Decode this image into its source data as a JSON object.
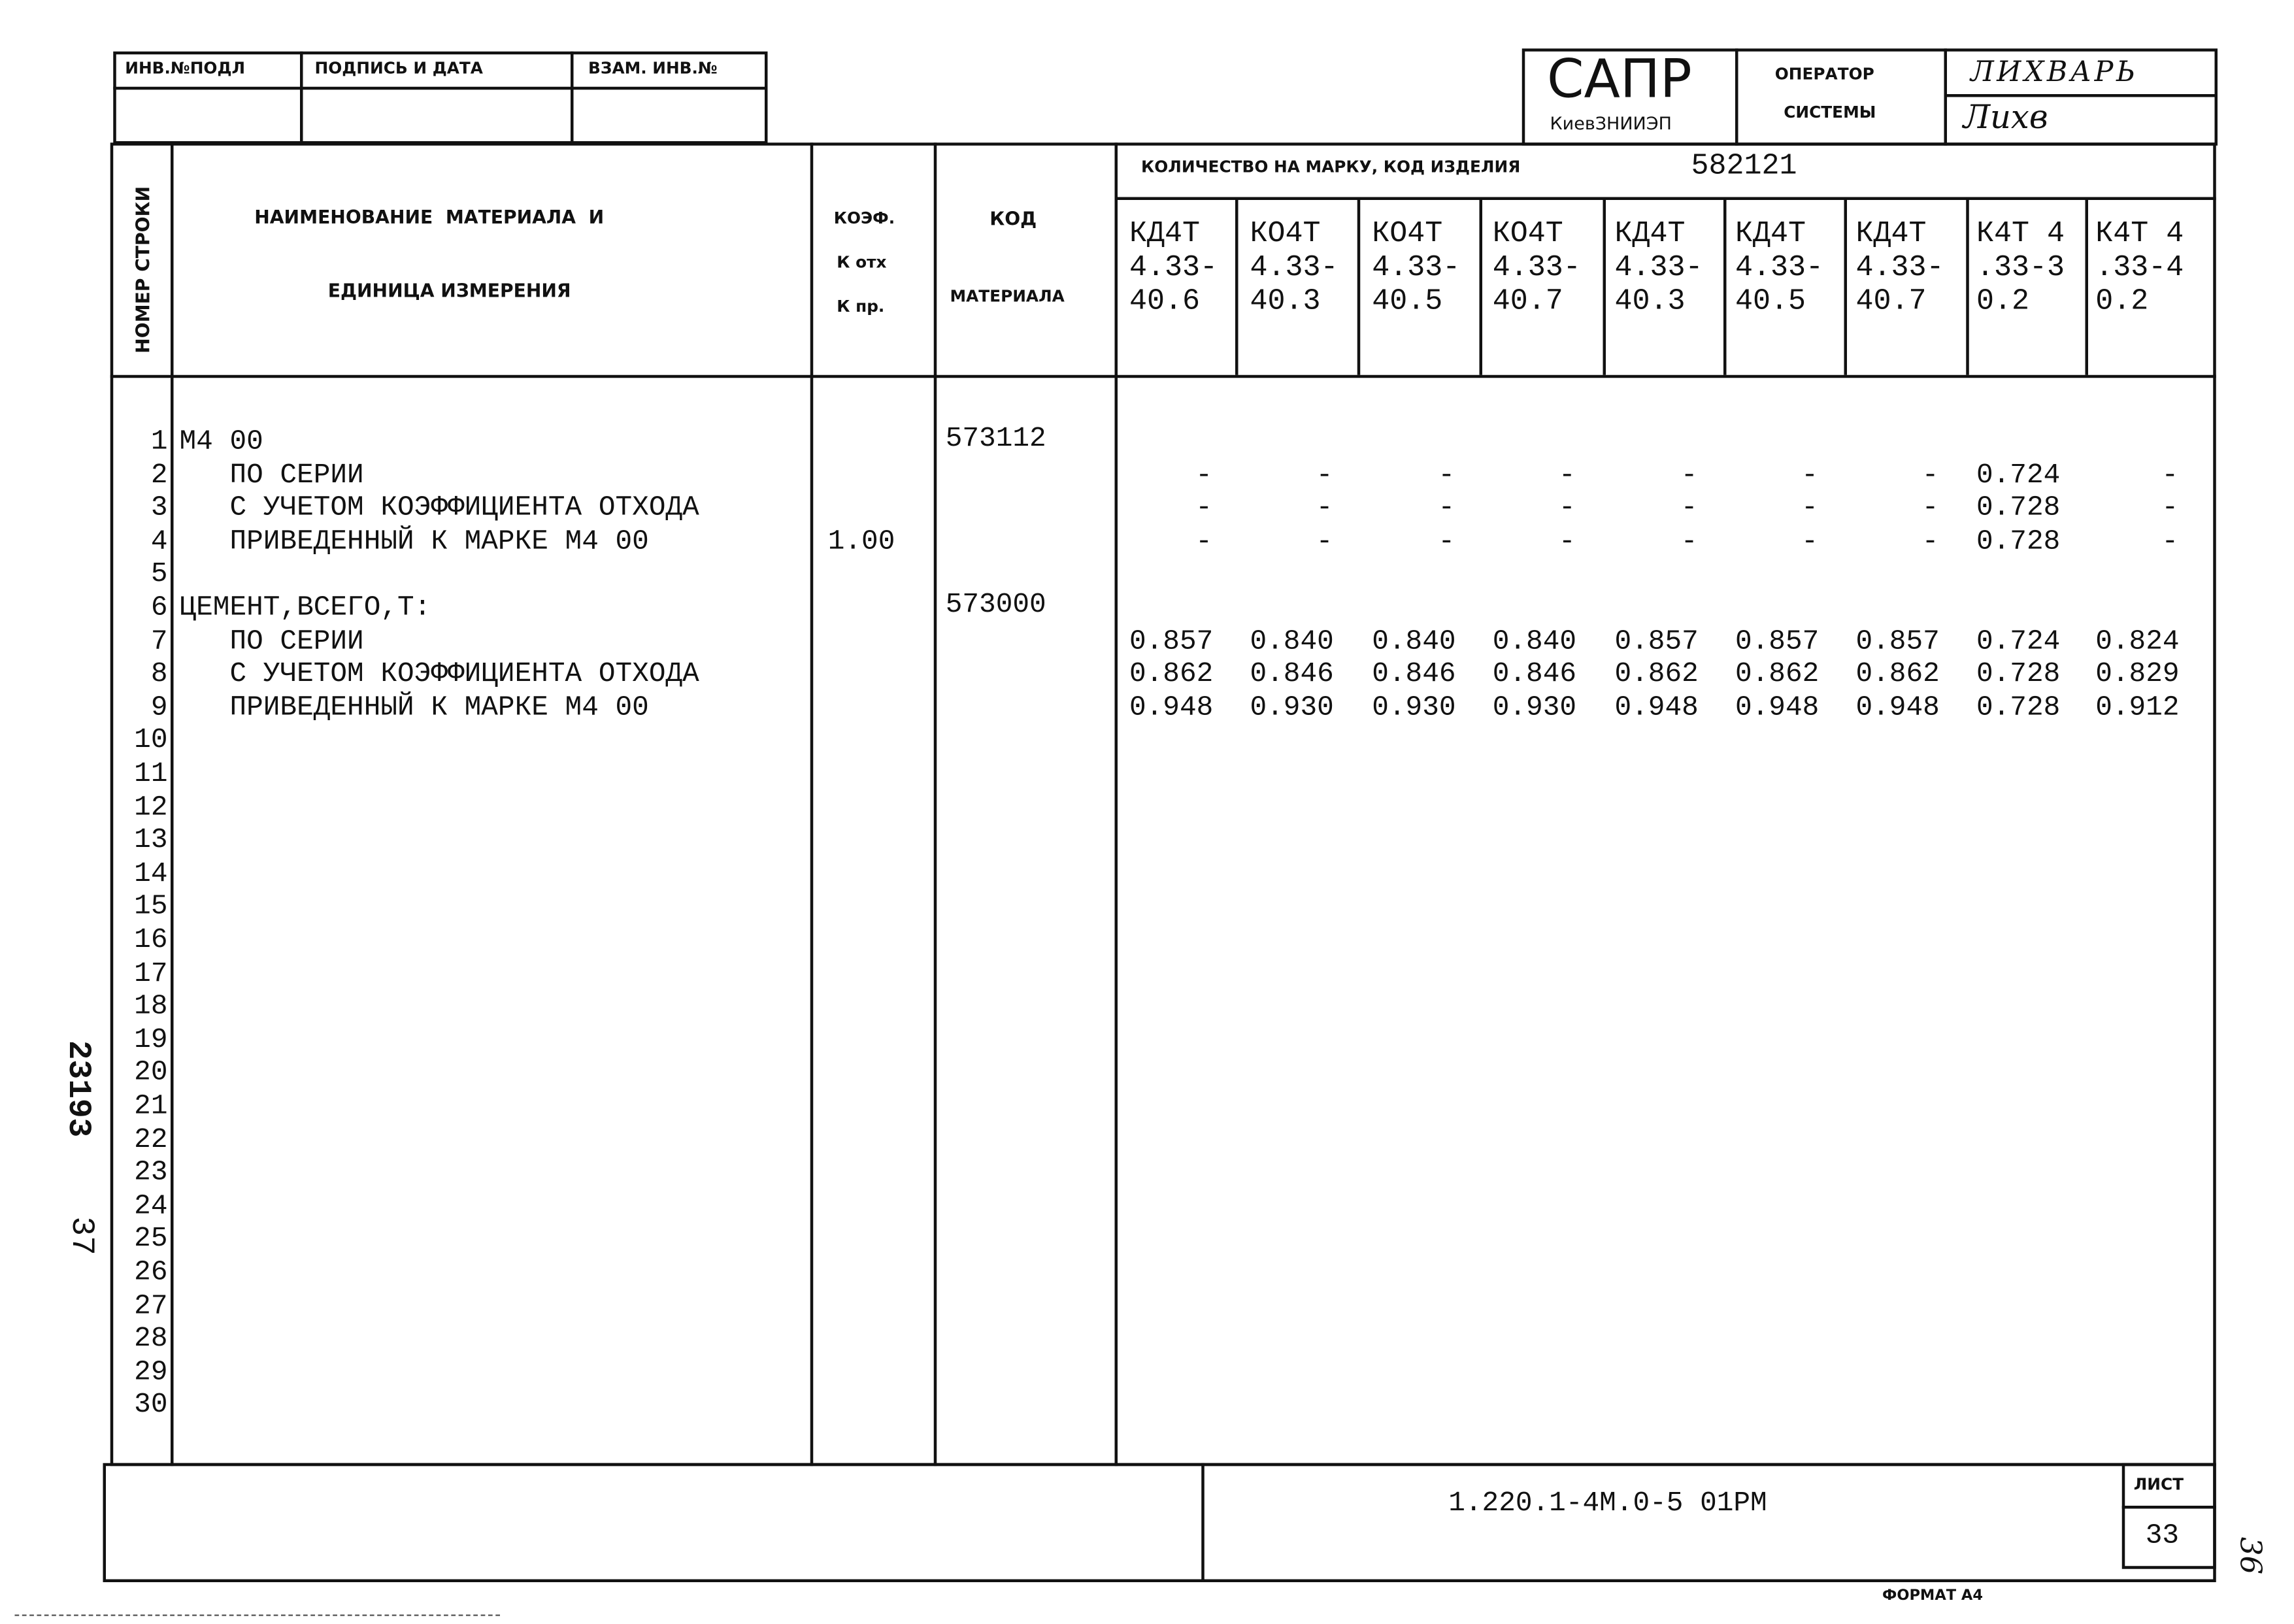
{
  "stamp_left": {
    "headers": [
      "ИНВ.№ПОДЛ",
      "ПОДПИСЬ И ДАТА",
      "ВЗАМ. ИНВ.№"
    ]
  },
  "stamp_right": {
    "logo": "САПР",
    "org": "КиевЗНИИЭП",
    "role_line1": "ОПЕРАТОР",
    "role_line2": "СИСТЕМЫ",
    "operator_name": "ЛИХВАРЬ",
    "signature": "Лихв"
  },
  "table": {
    "col_row_number": "НОМЕР СТРОКИ",
    "col_name_line1": "НАИМЕНОВАНИЕ  МАТЕРИАЛА  И",
    "col_name_line2": "ЕДИНИЦА ИЗМЕРЕНИЯ",
    "col_coef": [
      "КОЭФ.",
      "К отх",
      "К пр."
    ],
    "col_code": [
      "КОД",
      "МАТЕРИАЛА"
    ],
    "qty_label": "КОЛИЧЕСТВО НА МАРКУ, КОД ИЗДЕЛИЯ",
    "product_code": "582121",
    "marks": [
      [
        "КД4Т",
        "4.33-",
        "40.6"
      ],
      [
        "КО4Т",
        "4.33-",
        "40.3"
      ],
      [
        "КО4Т",
        "4.33-",
        "40.5"
      ],
      [
        "КО4Т",
        "4.33-",
        "40.7"
      ],
      [
        "КД4Т",
        "4.33-",
        "40.3"
      ],
      [
        "КД4Т",
        "4.33-",
        "40.5"
      ],
      [
        "КД4Т",
        "4.33-",
        "40.7"
      ],
      [
        "К4Т 4",
        ".33-3",
        "0.2"
      ],
      [
        "К4Т 4",
        ".33-4",
        "0.2"
      ]
    ],
    "row_numbers": [
      "1",
      "2",
      "3",
      "4",
      "5",
      "6",
      "7",
      "8",
      "9",
      "10",
      "11",
      "12",
      "13",
      "14",
      "15",
      "16",
      "17",
      "18",
      "19",
      "20",
      "21",
      "22",
      "23",
      "24",
      "25",
      "26",
      "27",
      "28",
      "29",
      "30"
    ],
    "rows": [
      {
        "line": 1,
        "name": "М4 00",
        "coef": "",
        "code": "573112",
        "values": []
      },
      {
        "line": 2,
        "name": "   ПО СЕРИИ",
        "coef": "",
        "code": "",
        "values": [
          "-",
          "-",
          "-",
          "-",
          "-",
          "-",
          "-",
          "0.724",
          "-"
        ]
      },
      {
        "line": 3,
        "name": "   С УЧЕТОМ КОЭФФИЦИЕНТА ОТХОДА",
        "coef": "",
        "code": "",
        "values": [
          "-",
          "-",
          "-",
          "-",
          "-",
          "-",
          "-",
          "0.728",
          "-"
        ]
      },
      {
        "line": 4,
        "name": "   ПРИВЕДЕННЫЙ К МАРКЕ М4 00",
        "coef": "1.00",
        "code": "",
        "values": [
          "-",
          "-",
          "-",
          "-",
          "-",
          "-",
          "-",
          "0.728",
          "-"
        ]
      },
      {
        "line": 6,
        "name": "ЦЕМЕНТ,ВСЕГО,Т:",
        "coef": "",
        "code": "573000",
        "values": []
      },
      {
        "line": 7,
        "name": "   ПО СЕРИИ",
        "coef": "",
        "code": "",
        "values": [
          "0.857",
          "0.840",
          "0.840",
          "0.840",
          "0.857",
          "0.857",
          "0.857",
          "0.724",
          "0.824"
        ]
      },
      {
        "line": 8,
        "name": "   С УЧЕТОМ КОЭФФИЦИЕНТА ОТХОДА",
        "coef": "",
        "code": "",
        "values": [
          "0.862",
          "0.846",
          "0.846",
          "0.846",
          "0.862",
          "0.862",
          "0.862",
          "0.728",
          "0.829"
        ]
      },
      {
        "line": 9,
        "name": "   ПРИВЕДЕННЫЙ К МАРКЕ М4 00",
        "coef": "",
        "code": "",
        "values": [
          "0.948",
          "0.930",
          "0.930",
          "0.930",
          "0.948",
          "0.948",
          "0.948",
          "0.728",
          "0.912"
        ]
      }
    ]
  },
  "footer": {
    "doc_code": "1.220.1-4М.0-5 01РМ",
    "sheet_label": "ЛИСТ",
    "sheet_number": "33",
    "format": "ФОРМАТ А4"
  },
  "margin": {
    "archive_number": "23193",
    "archive_sheet": "37",
    "page_number": "36"
  }
}
